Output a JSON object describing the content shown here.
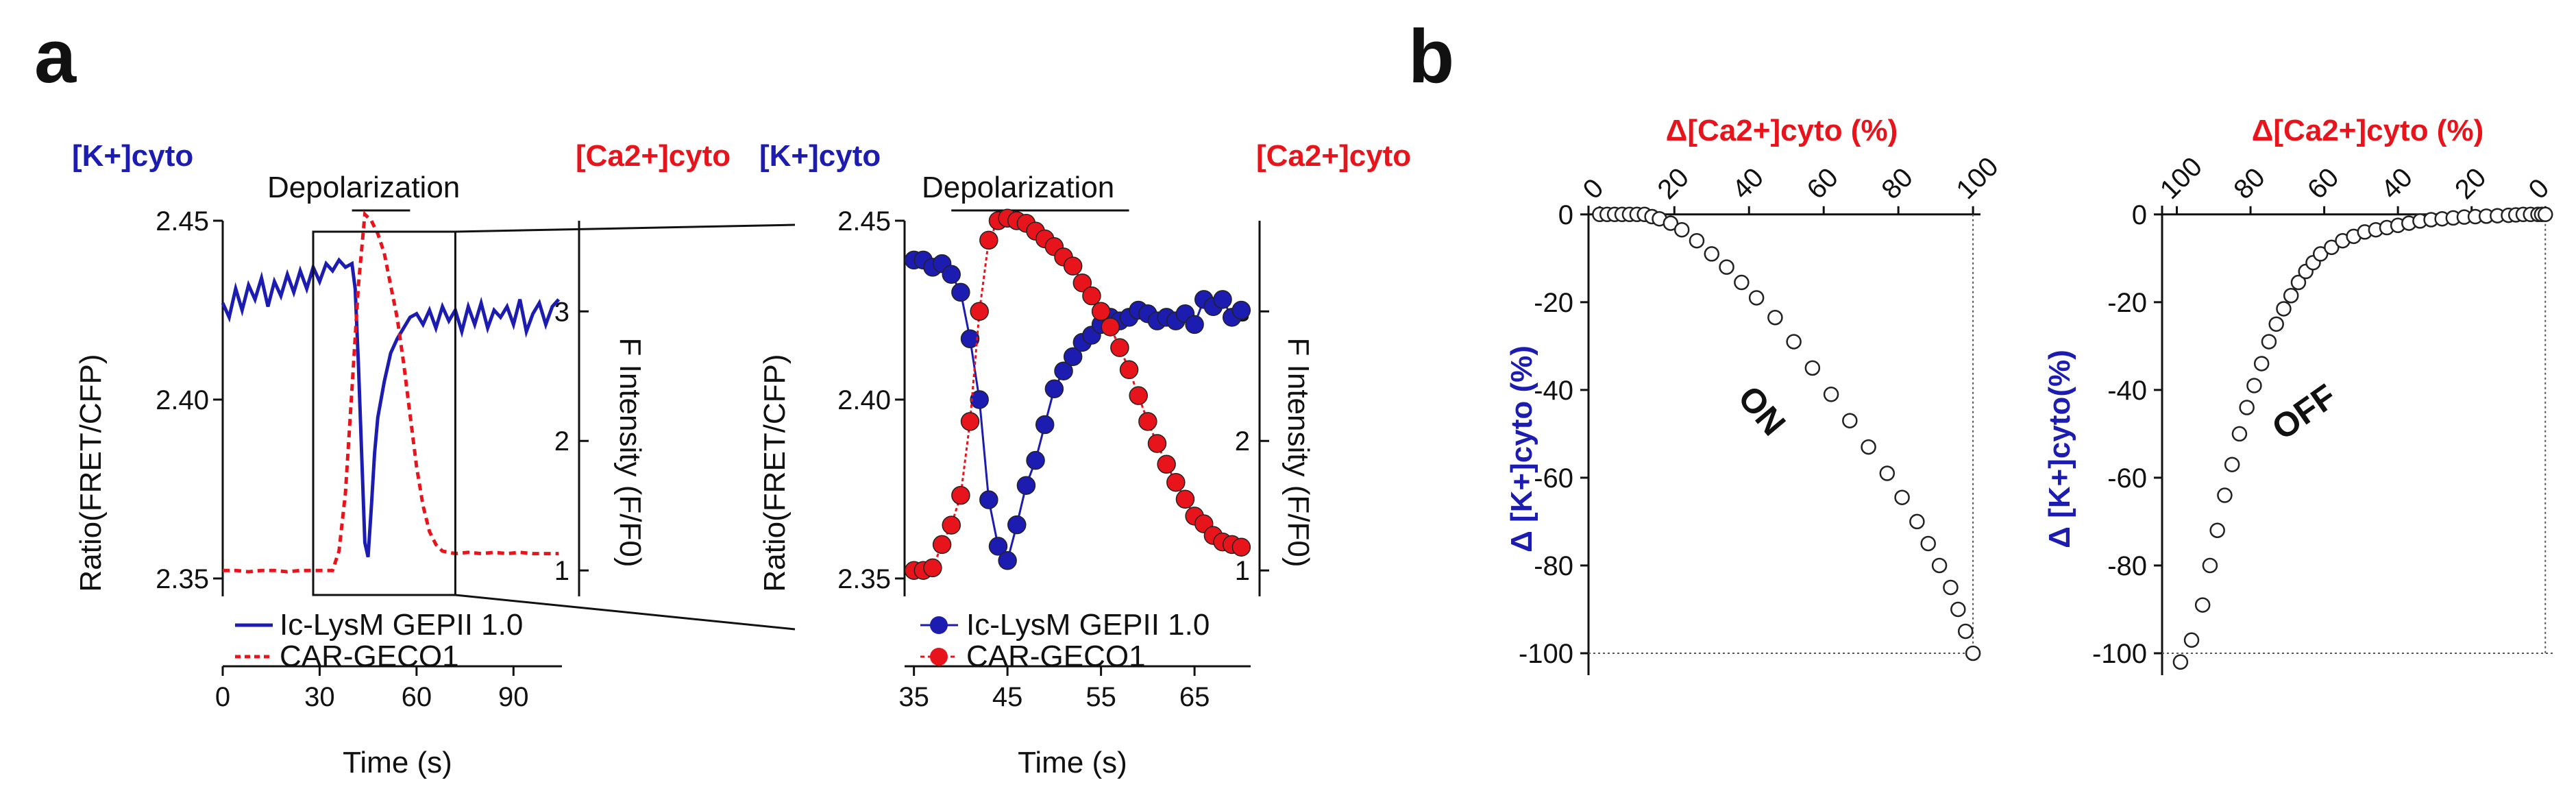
{
  "panels": {
    "a": {
      "label": "a",
      "overview": {
        "left_axis_title": "[K+]cyto",
        "right_axis_title": "[Ca2+]cyto",
        "left_axis_label": "Ratio(FRET/CFP)",
        "right_axis_label": "F Intensity (F/F0)",
        "xlabel": "Time (s)",
        "stimulus_label": "Depolarization",
        "xticks": [
          "0",
          "30",
          "60",
          "90"
        ],
        "yticks_left": [
          "2.35",
          "2.40",
          "2.45"
        ],
        "yticks_right": [
          "1",
          "2",
          "3"
        ],
        "legend": [
          "Ic-LysM  GEPII 1.0",
          "CAR-GECO1"
        ]
      },
      "zoom": {
        "left_axis_title": "[K+]cyto",
        "right_axis_title": "[Ca2+]cyto",
        "left_axis_label": "Ratio(FRET/CFP)",
        "right_axis_label": "F Intensity (F/F0)",
        "xlabel": "Time (s)",
        "stimulus_label": "Depolarization",
        "xticks": [
          "35",
          "45",
          "55",
          "65"
        ],
        "yticks_left": [
          "2.35",
          "2.40",
          "2.45"
        ],
        "yticks_right": [
          "1",
          "2",
          "3"
        ],
        "legend": [
          "Ic-LysM  GEPII 1.0",
          "CAR-GECO1"
        ]
      }
    },
    "b": {
      "label": "b",
      "on": {
        "annotation": "ON",
        "top_axis_label": "Δ[Ca2+]cyto (%)",
        "left_axis_label": "Δ [K+]cyto (%)",
        "xticks": [
          "0",
          "20",
          "40",
          "60",
          "80",
          "100"
        ],
        "yticks": [
          "0",
          "-20",
          "-40",
          "-60",
          "-80",
          "-100"
        ]
      },
      "off": {
        "annotation": "OFF",
        "top_axis_label": "Δ[Ca2+]cyto (%)",
        "left_axis_label": "Δ [K+]cyto(%)",
        "xticks": [
          "100",
          "80",
          "60",
          "40",
          "20",
          "0"
        ],
        "yticks": [
          "0",
          "-20",
          "-40",
          "-60",
          "-80",
          "-100"
        ]
      }
    }
  },
  "chart_data": [
    {
      "id": "a-overview",
      "type": "line",
      "xlabel": "Time (s)",
      "ylabel": "Ratio(FRET/CFP)",
      "y2label": "F Intensity (F/F0)",
      "xlim": [
        0,
        105
      ],
      "ylim": [
        2.345,
        2.45
      ],
      "y2lim": [
        0.8,
        3.7
      ],
      "xticks": [
        0,
        30,
        60,
        90
      ],
      "yticks": [
        2.35,
        2.4,
        2.45
      ],
      "y2ticks": [
        1,
        2,
        3
      ],
      "stimulus": {
        "label": "Depolarization",
        "start": 40,
        "end": 58
      },
      "zoom_box": {
        "x": [
          28,
          72
        ]
      },
      "series": [
        {
          "name": "Ic-LysM  GEPII 1.0",
          "axis": "left",
          "color": "#1c1cb0",
          "style": "solid",
          "x": [
            0,
            2,
            4,
            6,
            8,
            10,
            12,
            14,
            16,
            18,
            20,
            22,
            24,
            26,
            28,
            30,
            32,
            34,
            36,
            38,
            40,
            41,
            42,
            43,
            44,
            45,
            46,
            47,
            48,
            50,
            52,
            54,
            56,
            58,
            60,
            62,
            64,
            66,
            68,
            70,
            72,
            74,
            76,
            78,
            80,
            82,
            84,
            86,
            88,
            90,
            92,
            94,
            96,
            98,
            100,
            102,
            104
          ],
          "y": [
            2.427,
            2.423,
            2.431,
            2.425,
            2.432,
            2.428,
            2.434,
            2.426,
            2.433,
            2.429,
            2.435,
            2.43,
            2.436,
            2.431,
            2.437,
            2.433,
            2.438,
            2.436,
            2.439,
            2.437,
            2.438,
            2.431,
            2.41,
            2.385,
            2.36,
            2.356,
            2.37,
            2.385,
            2.395,
            2.405,
            2.413,
            2.417,
            2.42,
            2.423,
            2.424,
            2.421,
            2.425,
            2.42,
            2.426,
            2.422,
            2.425,
            2.419,
            2.426,
            2.421,
            2.427,
            2.42,
            2.425,
            2.423,
            2.426,
            2.421,
            2.428,
            2.419,
            2.424,
            2.427,
            2.421,
            2.426,
            2.428
          ]
        },
        {
          "name": "CAR-GECO1",
          "axis": "right",
          "color": "#e8141c",
          "style": "dashed",
          "x": [
            0,
            4,
            8,
            12,
            16,
            20,
            24,
            28,
            32,
            34,
            36,
            38,
            40,
            42,
            44,
            46,
            48,
            50,
            52,
            54,
            56,
            58,
            60,
            62,
            64,
            66,
            68,
            70,
            72,
            76,
            80,
            84,
            88,
            92,
            96,
            100,
            104
          ],
          "y": [
            1.0,
            1.0,
            0.99,
            1.0,
            1.0,
            0.99,
            1.0,
            1.0,
            1.0,
            1.0,
            1.15,
            1.6,
            2.4,
            3.2,
            3.75,
            3.7,
            3.6,
            3.45,
            3.2,
            2.95,
            2.6,
            2.2,
            1.8,
            1.5,
            1.3,
            1.2,
            1.15,
            1.14,
            1.13,
            1.14,
            1.13,
            1.14,
            1.13,
            1.14,
            1.13,
            1.13,
            1.13
          ]
        }
      ]
    },
    {
      "id": "a-zoom",
      "type": "line",
      "xlabel": "Time (s)",
      "ylabel": "Ratio(FRET/CFP)",
      "y2label": "F Intensity (F/F0)",
      "xlim": [
        34,
        71
      ],
      "ylim": [
        2.345,
        2.45
      ],
      "y2lim": [
        0.8,
        3.7
      ],
      "xticks": [
        35,
        45,
        55,
        65
      ],
      "yticks": [
        2.35,
        2.4,
        2.45
      ],
      "y2ticks": [
        1,
        2,
        3
      ],
      "stimulus": {
        "label": "Depolarization",
        "start": 39,
        "end": 58
      },
      "series": [
        {
          "name": "Ic-LysM  GEPII 1.0",
          "axis": "left",
          "color": "#1c1cb0",
          "marker": "circle",
          "x": [
            35,
            36,
            37,
            38,
            39,
            40,
            41,
            42,
            43,
            44,
            45,
            46,
            47,
            48,
            49,
            50,
            51,
            52,
            53,
            54,
            55,
            56,
            57,
            58,
            59,
            60,
            61,
            62,
            63,
            64,
            65,
            66,
            67,
            68,
            69,
            70
          ],
          "y": [
            2.439,
            2.439,
            2.437,
            2.438,
            2.435,
            2.43,
            2.417,
            2.4,
            2.372,
            2.359,
            2.355,
            2.365,
            2.376,
            2.383,
            2.393,
            2.403,
            2.408,
            2.412,
            2.416,
            2.418,
            2.421,
            2.423,
            2.422,
            2.423,
            2.425,
            2.424,
            2.422,
            2.423,
            2.422,
            2.424,
            2.421,
            2.428,
            2.426,
            2.428,
            2.423,
            2.425
          ]
        },
        {
          "name": "CAR-GECO1",
          "axis": "right",
          "color": "#e8141c",
          "marker": "circle",
          "x": [
            35,
            36,
            37,
            38,
            39,
            40,
            41,
            42,
            43,
            44,
            45,
            46,
            47,
            48,
            49,
            50,
            51,
            52,
            53,
            54,
            55,
            56,
            57,
            58,
            59,
            60,
            61,
            62,
            63,
            64,
            65,
            66,
            67,
            68,
            69,
            70
          ],
          "y": [
            1.0,
            1.0,
            1.02,
            1.2,
            1.35,
            1.58,
            2.15,
            3.0,
            3.55,
            3.7,
            3.72,
            3.7,
            3.68,
            3.62,
            3.56,
            3.5,
            3.42,
            3.35,
            3.22,
            3.12,
            3.0,
            2.88,
            2.72,
            2.55,
            2.35,
            2.15,
            1.98,
            1.82,
            1.68,
            1.55,
            1.42,
            1.36,
            1.27,
            1.22,
            1.2,
            1.18
          ]
        }
      ]
    },
    {
      "id": "b-on",
      "type": "scatter",
      "annotation": "ON",
      "xlabel": "Δ[Ca2+]cyto (%)",
      "ylabel": "Δ [K+]cyto (%)",
      "xlim": [
        -3,
        102
      ],
      "ylim": [
        -105,
        2
      ],
      "xticks": [
        0,
        20,
        40,
        60,
        80,
        100
      ],
      "yticks": [
        0,
        -20,
        -40,
        -60,
        -80,
        -100
      ],
      "x": [
        0,
        2,
        4,
        6,
        8,
        10,
        12,
        14,
        16,
        19,
        22,
        26,
        30,
        34,
        38,
        42,
        47,
        52,
        57,
        62,
        67,
        72,
        77,
        81,
        85,
        88,
        91,
        94,
        96,
        98,
        100
      ],
      "y": [
        0,
        0,
        0,
        0,
        0,
        0,
        0,
        -0.5,
        -1,
        -2,
        -3.5,
        -6,
        -9,
        -12,
        -15.5,
        -19,
        -23.5,
        -29,
        -35,
        -41,
        -47,
        -53,
        -59,
        -64.5,
        -70,
        -75,
        -80,
        -85,
        -90,
        -95,
        -100
      ]
    },
    {
      "id": "b-off",
      "type": "scatter",
      "annotation": "OFF",
      "xlabel": "Δ[Ca2+]cyto (%)",
      "ylabel": "Δ [K+]cyto(%)",
      "xlim": [
        104,
        -2
      ],
      "ylim": [
        -105,
        2
      ],
      "xticks": [
        100,
        80,
        60,
        40,
        20,
        0
      ],
      "yticks": [
        0,
        -20,
        -40,
        -60,
        -80,
        -100
      ],
      "x": [
        99,
        96,
        93,
        91,
        89,
        87,
        85,
        83,
        81,
        79,
        77,
        75,
        73,
        71,
        69,
        67,
        65,
        63,
        61,
        58,
        55,
        52,
        49,
        46,
        43,
        40,
        37,
        34,
        31,
        28,
        25,
        22,
        19,
        16,
        13,
        10,
        8,
        6,
        4,
        2,
        1,
        0
      ],
      "y": [
        -102,
        -97,
        -89,
        -80,
        -72,
        -64,
        -57,
        -50,
        -44,
        -39,
        -34,
        -29,
        -25,
        -21.5,
        -18.5,
        -15.5,
        -13,
        -11,
        -9,
        -7.5,
        -6,
        -5,
        -4,
        -3.5,
        -3,
        -2.5,
        -2,
        -1.5,
        -1.2,
        -1,
        -0.8,
        -0.6,
        -0.5,
        -0.4,
        -0.3,
        -0.2,
        -0.1,
        0,
        0,
        0,
        0,
        0
      ]
    }
  ]
}
